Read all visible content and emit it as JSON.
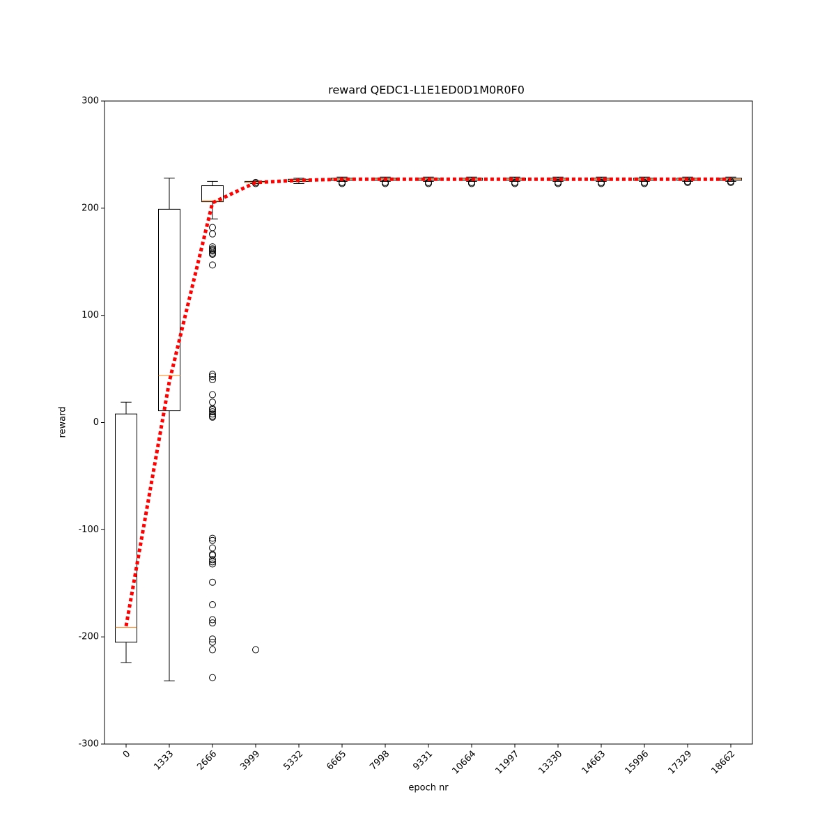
{
  "chart_data": {
    "type": "box",
    "title": "reward QEDC1-L1E1ED0D1M0R0F0",
    "x_label": "epoch nr",
    "y_label": "reward",
    "categories": [
      "0",
      "1333",
      "2666",
      "3999",
      "5332",
      "6665",
      "7998",
      "9331",
      "10664",
      "11997",
      "13330",
      "14663",
      "15996",
      "17329",
      "18662"
    ],
    "ylim": [
      -300,
      300
    ],
    "yticks": [
      -300,
      -200,
      -100,
      0,
      100,
      200,
      300
    ],
    "box_color": "#000000",
    "median_color": "#ff7f0e",
    "boxes": [
      {
        "whislo": -224,
        "q1": -205,
        "med": -191,
        "q3": 8,
        "whishi": 19,
        "fliers": []
      },
      {
        "whislo": -241,
        "q1": 11,
        "med": 44,
        "q3": 199,
        "whishi": 228,
        "fliers": []
      },
      {
        "whislo": 190,
        "q1": 206,
        "med": 207,
        "q3": 221,
        "whishi": 225,
        "fliers": [
          182,
          176,
          164,
          162,
          161,
          160,
          158,
          157,
          147,
          45,
          43,
          40,
          26,
          19,
          13,
          12,
          10,
          8,
          6,
          5,
          -108,
          -110,
          -117,
          -123,
          -124,
          -128,
          -130,
          -132,
          -149,
          -170,
          -184,
          -187,
          -202,
          -205,
          -212,
          -238
        ]
      },
      {
        "whislo": 223,
        "q1": 224,
        "med": 224,
        "q3": 225,
        "whishi": 225,
        "fliers": [
          224,
          223,
          -212
        ]
      },
      {
        "whislo": 223,
        "q1": 225,
        "med": 226,
        "q3": 227,
        "whishi": 228,
        "fliers": []
      },
      {
        "whislo": 225,
        "q1": 226,
        "med": 227,
        "q3": 228,
        "whishi": 229,
        "fliers": [
          224,
          223
        ]
      },
      {
        "whislo": 225,
        "q1": 226,
        "med": 227,
        "q3": 228,
        "whishi": 229,
        "fliers": [
          224,
          223
        ]
      },
      {
        "whislo": 225,
        "q1": 226,
        "med": 227,
        "q3": 228,
        "whishi": 229,
        "fliers": [
          224,
          223
        ]
      },
      {
        "whislo": 225,
        "q1": 226,
        "med": 227,
        "q3": 228,
        "whishi": 229,
        "fliers": [
          224,
          223
        ]
      },
      {
        "whislo": 225,
        "q1": 226,
        "med": 227,
        "q3": 228,
        "whishi": 229,
        "fliers": [
          224,
          223
        ]
      },
      {
        "whislo": 225,
        "q1": 226,
        "med": 227,
        "q3": 228,
        "whishi": 229,
        "fliers": [
          224,
          223
        ]
      },
      {
        "whislo": 225,
        "q1": 226,
        "med": 227,
        "q3": 228,
        "whishi": 229,
        "fliers": [
          224,
          223
        ]
      },
      {
        "whislo": 225,
        "q1": 226,
        "med": 227,
        "q3": 228,
        "whishi": 229,
        "fliers": [
          224,
          223
        ]
      },
      {
        "whislo": 225,
        "q1": 226,
        "med": 227,
        "q3": 228,
        "whishi": 229,
        "fliers": [
          225,
          224
        ]
      },
      {
        "whislo": 225,
        "q1": 226,
        "med": 227,
        "q3": 228,
        "whishi": 229,
        "fliers": [
          225,
          224
        ]
      }
    ],
    "mean_line": {
      "color": "#ff0000",
      "values": [
        -190,
        38,
        205,
        224,
        226,
        227,
        227,
        227,
        227,
        227,
        227,
        227,
        227,
        227,
        227
      ]
    }
  }
}
